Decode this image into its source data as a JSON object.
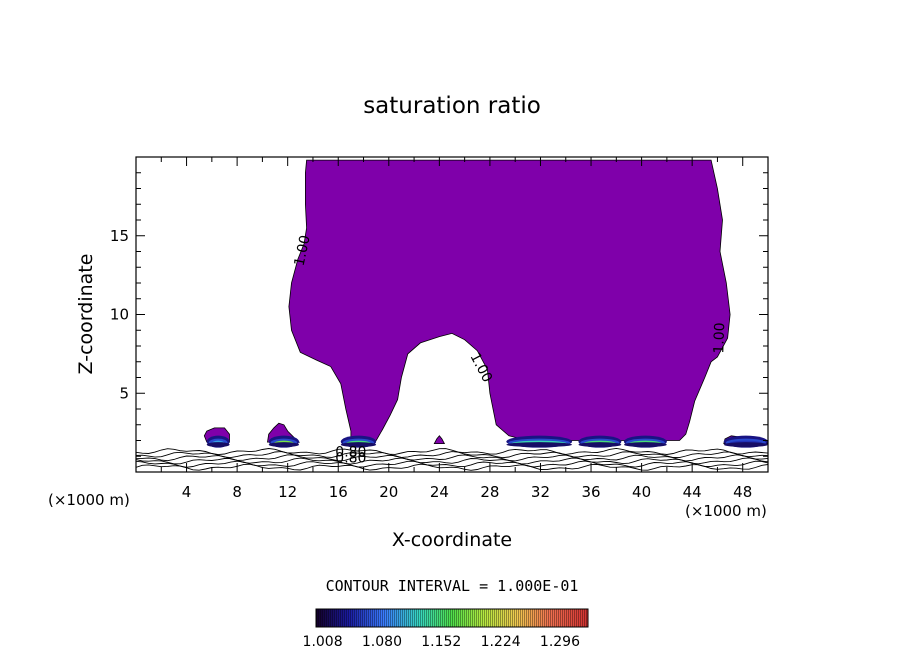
{
  "chart_data": {
    "type": "heatmap",
    "title": "saturation ratio",
    "xlabel": "X-coordinate",
    "ylabel": "Z-coordinate",
    "x_unit_label": "(×1000 m)",
    "x_unit_label_right": "(×1000 m)",
    "xlim": [
      0,
      50
    ],
    "ylim": [
      0,
      20
    ],
    "x_ticks": [
      4,
      8,
      12,
      16,
      20,
      24,
      28,
      32,
      36,
      40,
      44,
      48
    ],
    "y_ticks": [
      5,
      10,
      15
    ],
    "contour_interval_label": "CONTOUR INTERVAL = 1.000E-01",
    "contour_labels": [
      {
        "text": "1.00",
        "x": 13.5,
        "z": 14
      },
      {
        "text": "1.00",
        "x": 27.0,
        "z": 6.5
      },
      {
        "text": "1.00",
        "x": 46.5,
        "z": 8.5
      },
      {
        "text": "0.80",
        "x": 17.0,
        "z": 1.0
      },
      {
        "text": "0.80",
        "x": 17.0,
        "z": 0.6
      }
    ],
    "colorbar": {
      "min": 1.0,
      "max": 1.33,
      "tick_labels": [
        "1.008",
        "1.080",
        "1.152",
        "1.224",
        "1.296"
      ]
    },
    "regions": [
      {
        "name": "supersaturated-cloud-mass",
        "level": 1.008,
        "outline": [
          [
            13.5,
            19.8
          ],
          [
            45.5,
            19.8
          ],
          [
            46,
            18
          ],
          [
            46.4,
            16
          ],
          [
            46.2,
            14
          ],
          [
            46.7,
            12
          ],
          [
            47,
            10
          ],
          [
            46.8,
            8.5
          ],
          [
            46,
            7.3
          ],
          [
            45.5,
            7
          ],
          [
            45,
            6
          ],
          [
            44.2,
            4.5
          ],
          [
            43.8,
            3.2
          ],
          [
            43.5,
            2.4
          ],
          [
            43,
            2
          ],
          [
            31,
            2
          ],
          [
            29.5,
            2.3
          ],
          [
            28.5,
            3
          ],
          [
            28,
            5
          ],
          [
            27.8,
            6.5
          ],
          [
            27,
            7.7
          ],
          [
            26,
            8.4
          ],
          [
            25,
            8.8
          ],
          [
            24,
            8.6
          ],
          [
            22.5,
            8.2
          ],
          [
            21.5,
            7.5
          ],
          [
            21,
            6
          ],
          [
            20.7,
            4.6
          ],
          [
            20.1,
            3.6
          ],
          [
            19.5,
            2.7
          ],
          [
            19,
            2
          ],
          [
            17,
            2
          ],
          [
            17,
            2.6
          ],
          [
            16.6,
            4
          ],
          [
            16.2,
            5.6
          ],
          [
            15.4,
            6.7
          ],
          [
            14.3,
            7.1
          ],
          [
            13,
            7.6
          ],
          [
            12.3,
            9
          ],
          [
            12.1,
            10.5
          ],
          [
            12.3,
            12
          ],
          [
            12.8,
            13.5
          ],
          [
            13.3,
            14.5
          ],
          [
            13.5,
            15.5
          ],
          [
            13.4,
            17
          ],
          [
            13.4,
            19
          ]
        ]
      },
      {
        "name": "small-cloud-6km",
        "level": 1.008,
        "outline": [
          [
            5.6,
            1.9
          ],
          [
            5.4,
            2.3
          ],
          [
            5.6,
            2.6
          ],
          [
            6.2,
            2.8
          ],
          [
            7,
            2.8
          ],
          [
            7.4,
            2.4
          ],
          [
            7.4,
            1.9
          ]
        ]
      },
      {
        "name": "small-cloud-11km",
        "level": 1.008,
        "outline": [
          [
            10.4,
            1.9
          ],
          [
            10.5,
            2.4
          ],
          [
            10.9,
            2.8
          ],
          [
            11.3,
            3.1
          ],
          [
            11.7,
            3.0
          ],
          [
            12,
            2.6
          ],
          [
            12.5,
            2.2
          ],
          [
            12.9,
            1.9
          ]
        ]
      },
      {
        "name": "small-cloud-24km",
        "level": 1.008,
        "outline": [
          [
            23.6,
            1.8
          ],
          [
            23.8,
            2.1
          ],
          [
            24,
            2.3
          ],
          [
            24.2,
            2.1
          ],
          [
            24.4,
            1.8
          ]
        ]
      },
      {
        "name": "small-cloud-48km",
        "level": 1.008,
        "outline": [
          [
            46.5,
            1.8
          ],
          [
            46.6,
            2.1
          ],
          [
            47.1,
            2.3
          ],
          [
            48,
            2.2
          ],
          [
            49,
            2.1
          ],
          [
            50,
            1.9
          ],
          [
            50,
            1.8
          ]
        ]
      }
    ],
    "cloud_base_patches": [
      {
        "x_range": [
          5.6,
          7.4
        ],
        "peak": 1.1
      },
      {
        "x_range": [
          10.5,
          12.9
        ],
        "peak": 1.18
      },
      {
        "x_range": [
          16.2,
          19.0
        ],
        "peak": 1.15
      },
      {
        "x_range": [
          29.3,
          34.5
        ],
        "peak": 1.13
      },
      {
        "x_range": [
          35.0,
          38.4
        ],
        "peak": 1.15
      },
      {
        "x_range": [
          38.6,
          42.0
        ],
        "peak": 1.15
      },
      {
        "x_range": [
          46.5,
          50.0
        ],
        "peak": 1.05
      }
    ],
    "subsaturated_contours_z": [
      0.3,
      0.5,
      0.7,
      0.9,
      1.1,
      1.3
    ]
  }
}
